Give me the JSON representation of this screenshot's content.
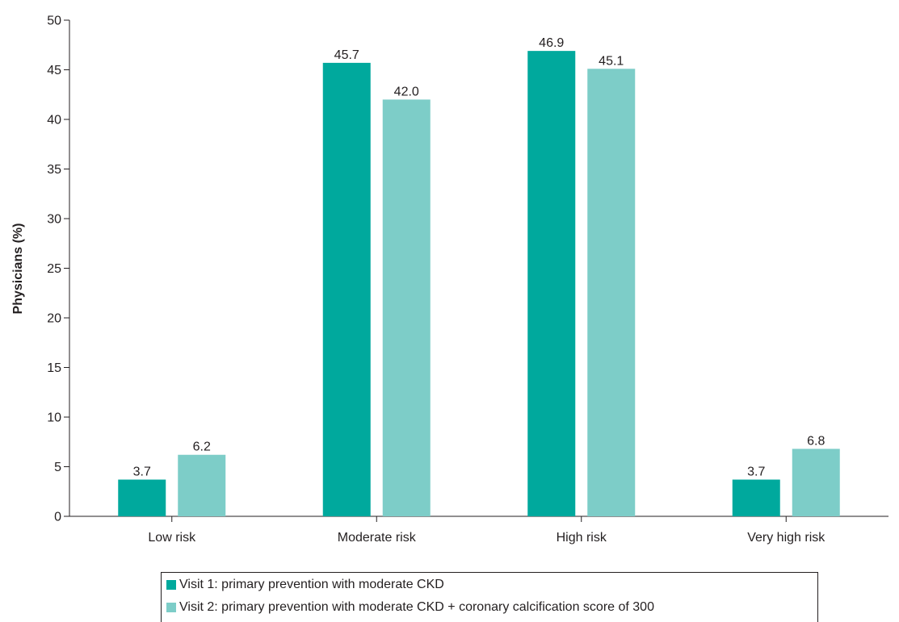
{
  "chart_data": {
    "type": "bar",
    "categories": [
      "Low risk",
      "Moderate risk",
      "High risk",
      "Very high risk"
    ],
    "series": [
      {
        "name": "Visit 1: primary prevention with moderate CKD",
        "values": [
          3.7,
          45.7,
          46.9,
          3.7
        ],
        "labels": [
          "3.7",
          "45.7",
          "46.9",
          "3.7"
        ],
        "color": "#00a99d"
      },
      {
        "name": "Visit 2: primary prevention with moderate CKD + coronary calcification score of 300",
        "values": [
          6.2,
          42.0,
          45.1,
          6.8
        ],
        "labels": [
          "6.2",
          "42.0",
          "45.1",
          "6.8"
        ],
        "color": "#7dcdc8"
      }
    ],
    "title": "",
    "xlabel": "",
    "ylabel": "Physicians (%)",
    "ylim": [
      0,
      50
    ],
    "yticks": [
      "0",
      "5",
      "10",
      "15",
      "20",
      "25",
      "30",
      "35",
      "40",
      "45",
      "50"
    ],
    "grid": false,
    "legend_position": "bottom"
  }
}
